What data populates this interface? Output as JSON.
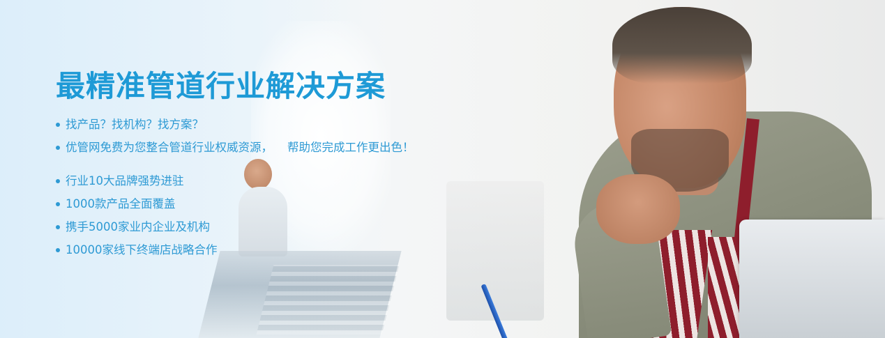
{
  "banner": {
    "headline": "最精准管道行业解决方案",
    "group_one": [
      "找产品？找机构？找方案？",
      "优管网免费为您整合管道行业权威资源，    帮助您完成工作更出色！"
    ],
    "group_two": [
      "行业10大品牌强势进驻",
      "1000款产品全面覆盖",
      "携手5000家业内企业及机构",
      "10000家线下终端店战略合作"
    ],
    "colors": {
      "headline": "#1e9ad6",
      "text": "#2e9ad4"
    }
  }
}
